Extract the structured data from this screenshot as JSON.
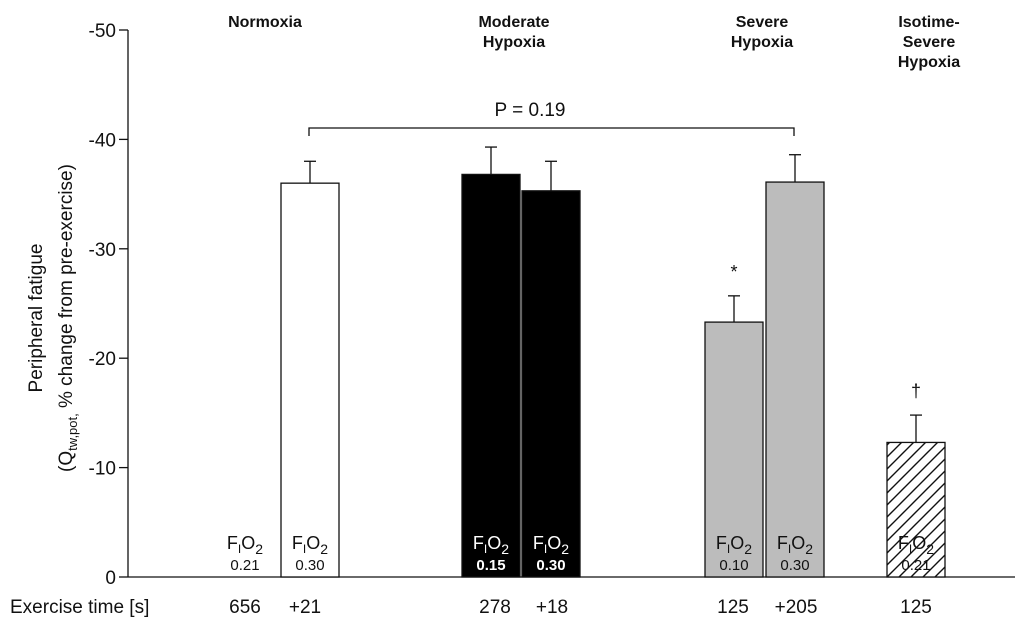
{
  "chart_data": {
    "type": "bar",
    "ylabel_line1": "Peripheral fatigue",
    "ylabel_line2_prefix": "(Q",
    "ylabel_line2_sub": "tw,pot,",
    "ylabel_line2_suffix": " % change from pre-exercise)",
    "ylim": [
      0,
      -50
    ],
    "yticks": [
      0,
      -10,
      -20,
      -30,
      -40,
      -50
    ],
    "ytick_labels": [
      "0",
      "-10",
      "-20",
      "-30",
      "-40",
      "-50"
    ],
    "group_titles": [
      {
        "lines": [
          "Normoxia"
        ]
      },
      {
        "lines": [
          "Moderate",
          "Hypoxia"
        ]
      },
      {
        "lines": [
          "Severe",
          "Hypoxia"
        ]
      },
      {
        "lines": [
          "Isotime-",
          "Severe",
          "Hypoxia"
        ]
      }
    ],
    "bars": [
      {
        "group": "Normoxia",
        "fio2": "0.30",
        "value": -36.0,
        "error": 2.0,
        "fill": "#ffffff",
        "pattern": "none",
        "text_color": "#111111",
        "exercise_time": "+21"
      },
      {
        "group": "Moderate Hypoxia",
        "fio2": "0.15",
        "value": -36.8,
        "error": 2.5,
        "fill": "#000000",
        "pattern": "none",
        "text_color": "#ffffff",
        "exercise_time": "278"
      },
      {
        "group": "Moderate Hypoxia",
        "fio2": "0.30",
        "value": -35.3,
        "error": 2.7,
        "fill": "#000000",
        "pattern": "none",
        "text_color": "#ffffff",
        "exercise_time": "+18"
      },
      {
        "group": "Severe Hypoxia",
        "fio2": "0.10",
        "value": -23.3,
        "error": 2.4,
        "fill": "#bcbcbc",
        "pattern": "none",
        "text_color": "#111111",
        "exercise_time": "125",
        "marker": "*"
      },
      {
        "group": "Severe Hypoxia",
        "fio2": "0.30",
        "value": -36.1,
        "error": 2.5,
        "fill": "#bcbcbc",
        "pattern": "none",
        "text_color": "#111111",
        "exercise_time": "+205"
      },
      {
        "group": "Isotime-Severe Hypoxia",
        "fio2": "0.21",
        "value": -12.3,
        "error": 2.5,
        "fill": "#ffffff",
        "pattern": "hatch",
        "text_color": "#111111",
        "exercise_time": "125",
        "marker": "†"
      }
    ],
    "unfilled_labels": [
      {
        "group": "Normoxia",
        "fio2": "0.21",
        "exercise_time": "656"
      }
    ],
    "fio2_label": {
      "f": "F",
      "sub": "I",
      "o": "O",
      "num": "2"
    },
    "bracket_label": "P = 0.19",
    "exercise_time_label": "Exercise time [s]",
    "grid": false
  }
}
